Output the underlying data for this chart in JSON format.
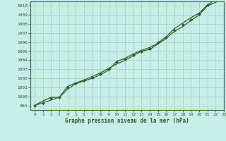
{
  "title": "Graphe pression niveau de la mer (hPa)",
  "bg_color": "#c8eee8",
  "grid_color": "#b0d8cc",
  "line_color": "#2d5a2d",
  "marker_color": "#2d5a2d",
  "xlim": [
    -0.5,
    23
  ],
  "ylim": [
    998.5,
    1010.5
  ],
  "xticks": [
    0,
    1,
    2,
    3,
    4,
    5,
    6,
    7,
    8,
    9,
    10,
    11,
    12,
    13,
    14,
    15,
    16,
    17,
    18,
    19,
    20,
    21,
    22,
    23
  ],
  "yticks": [
    999,
    1000,
    1001,
    1002,
    1003,
    1004,
    1005,
    1006,
    1007,
    1008,
    1009,
    1010
  ],
  "line1_x": [
    0,
    1,
    2,
    3,
    4,
    5,
    6,
    7,
    8,
    9,
    10,
    11,
    12,
    13,
    14,
    15,
    16,
    17,
    18,
    19,
    20,
    21,
    22,
    23
  ],
  "line1_y": [
    999.0,
    999.3,
    999.6,
    999.9,
    1001.1,
    1001.5,
    1001.8,
    1002.2,
    1002.6,
    1003.1,
    1003.6,
    1004.0,
    1004.5,
    1005.0,
    1005.2,
    1005.8,
    1006.4,
    1007.2,
    1007.7,
    1008.4,
    1009.0,
    1010.0,
    1010.4,
    1010.9
  ],
  "line2_x": [
    0,
    1,
    2,
    3,
    4,
    5,
    6,
    7,
    8,
    9,
    10,
    11,
    12,
    13,
    14,
    15,
    16,
    17,
    18,
    19,
    20,
    21,
    22,
    23
  ],
  "line2_y": [
    999.0,
    999.5,
    999.9,
    999.9,
    1000.8,
    1001.4,
    1001.7,
    1002.0,
    1002.4,
    1002.9,
    1003.9,
    1004.2,
    1004.7,
    1005.1,
    1005.4,
    1005.9,
    1006.6,
    1007.5,
    1008.1,
    1008.7,
    1009.2,
    1010.1,
    1010.7,
    1011.1
  ],
  "marker_x": [
    0,
    1,
    2,
    3,
    4,
    5,
    6,
    7,
    8,
    9,
    10,
    11,
    12,
    13,
    14,
    15,
    16,
    17,
    18,
    19,
    20,
    21,
    22,
    23
  ],
  "marker_y": [
    999.0,
    999.3,
    999.8,
    999.9,
    1001.0,
    1001.5,
    1001.8,
    1002.1,
    1002.5,
    1003.0,
    1003.8,
    1004.1,
    1004.6,
    1005.0,
    1005.3,
    1006.0,
    1006.5,
    1007.3,
    1007.9,
    1008.5,
    1009.1,
    1010.1,
    1010.6,
    1011.0
  ]
}
